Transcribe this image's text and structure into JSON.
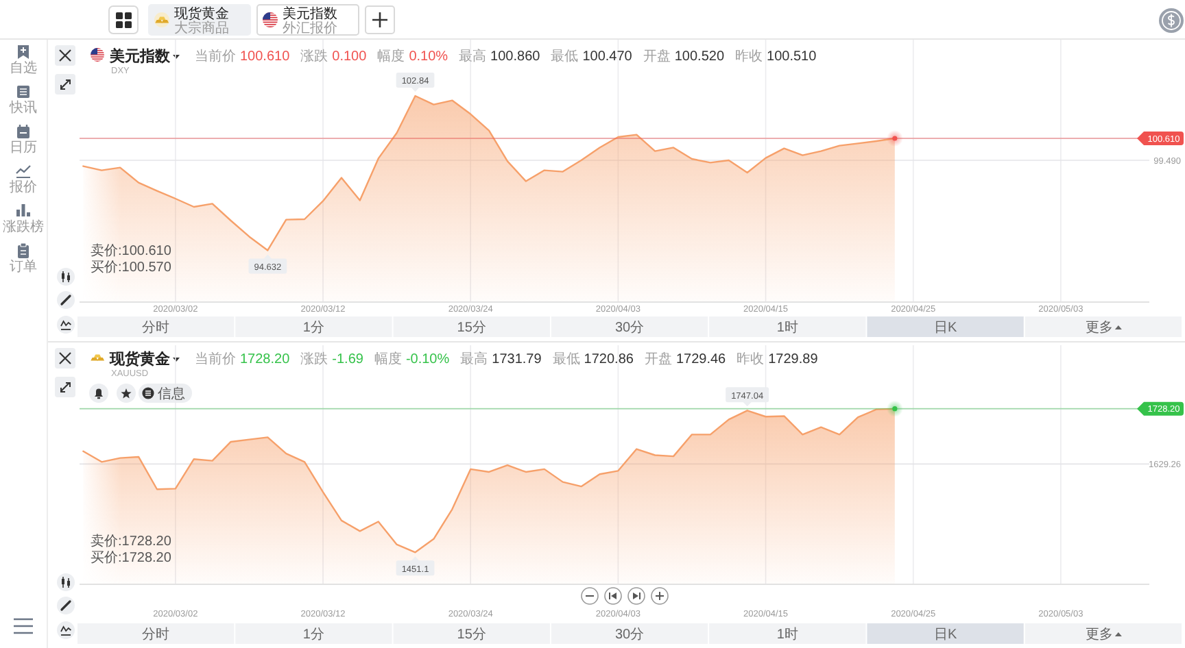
{
  "chart_data": [
    {
      "type": "other",
      "annotations": [
        "现货黄金",
        "大宗商品",
        "美元指数",
        "外汇报价",
        "自选",
        "快讯",
        "日历",
        "报价",
        "涨跌榜",
        "订单"
      ]
    },
    {
      "type": "area",
      "title": "美元指数",
      "subtitle": "DXY",
      "categories": [
        null,
        null,
        null,
        null,
        null,
        "2020/03/02",
        null,
        null,
        null,
        null,
        null,
        null,
        null,
        "2020/03/12",
        null,
        null,
        null,
        null,
        null,
        null,
        null,
        "2020/03/24",
        null,
        null,
        null,
        null,
        null,
        null,
        null,
        "2020/04/03",
        null,
        null,
        null,
        null,
        null,
        null,
        null,
        "2020/04/15",
        null,
        null,
        null,
        null,
        null,
        null,
        null,
        "2020/04/25",
        null,
        null,
        null,
        null,
        null,
        null,
        null,
        "2020/05/03",
        null,
        null,
        null,
        null
      ],
      "values": [
        99.19,
        98.98,
        99.12,
        98.35,
        97.93,
        97.53,
        97.11,
        97.27,
        96.41,
        95.59,
        94.89,
        96.46,
        96.48,
        97.41,
        98.6,
        97.44,
        99.58,
        100.89,
        102.78,
        102.34,
        102.55,
        101.85,
        101.01,
        99.44,
        98.42,
        98.98,
        98.91,
        99.49,
        100.14,
        100.68,
        100.8,
        99.96,
        100.14,
        99.56,
        99.37,
        99.49,
        98.86,
        99.61,
        100.1,
        99.75,
        99.96,
        100.24,
        100.35,
        100.47,
        100.61,
        null,
        null,
        null,
        null,
        null,
        null,
        null,
        null,
        null,
        null,
        null,
        null,
        null
      ],
      "color": "#f6a06a",
      "ylim": [
        92.28,
        105.65
      ],
      "yticks": [
        {
          "value": 99.49,
          "label": "99.490"
        },
        {
          "value": 100.61,
          "label": "100.610"
        }
      ],
      "grid": true,
      "ref_lines": [
        {
          "axis": "y",
          "value": 100.61,
          "color": "#f0524f"
        }
      ],
      "annotations": [
        "当前价",
        "100.610",
        "涨跌",
        "0.100",
        "幅度",
        "0.10%",
        "最高",
        "100.860",
        "最低",
        "100.470",
        "开盘",
        "100.520",
        "昨收",
        "100.510",
        "卖价:100.610",
        "买价:100.570",
        "分时",
        "1分",
        "15分",
        "30分",
        "1时",
        "日K",
        "更多",
        "102.84",
        "94.632"
      ]
    },
    {
      "type": "area",
      "title": "现货黄金",
      "subtitle": "XAUUSD",
      "categories": [
        null,
        null,
        null,
        null,
        null,
        "2020/03/02",
        null,
        null,
        null,
        null,
        null,
        null,
        null,
        "2020/03/12",
        null,
        null,
        null,
        null,
        null,
        null,
        null,
        "2020/03/24",
        null,
        null,
        null,
        null,
        null,
        null,
        null,
        "2020/04/03",
        null,
        null,
        null,
        null,
        null,
        null,
        null,
        "2020/04/15",
        null,
        null,
        null,
        null,
        null,
        null,
        null,
        "2020/04/25",
        null,
        null,
        null,
        null,
        null,
        null,
        null,
        "2020/05/03",
        null,
        null,
        null,
        null
      ],
      "values": [
        1652,
        1633,
        1640,
        1642,
        1584,
        1585,
        1638,
        1635,
        1669,
        1673,
        1677,
        1648,
        1633,
        1579,
        1528,
        1509,
        1526,
        1485,
        1471,
        1495,
        1548,
        1620,
        1615,
        1627,
        1615,
        1620,
        1597,
        1589,
        1611,
        1617,
        1656,
        1645,
        1643,
        1682,
        1682,
        1709,
        1725,
        1714,
        1715,
        1682,
        1695,
        1682,
        1713,
        1727,
        1728,
        null,
        null,
        null,
        null,
        null,
        null,
        null,
        null,
        null,
        null,
        null,
        null,
        null
      ],
      "color": "#f6a06a",
      "ylim": [
        1415,
        1841.9
      ],
      "yticks": [
        {
          "value": 1629.26,
          "label": "1629.26"
        },
        {
          "value": 1728.2,
          "label": "1728.20"
        }
      ],
      "grid": true,
      "ref_lines": [
        {
          "axis": "y",
          "value": 1728.2,
          "color": "#35c24a"
        }
      ],
      "annotations": [
        "当前价",
        "1728.20",
        "涨跌",
        "-1.69",
        "幅度",
        "-0.10%",
        "最高",
        "1731.79",
        "最低",
        "1720.86",
        "开盘",
        "1729.46",
        "昨收",
        "1729.89",
        "卖价:1728.20",
        "买价:1728.20",
        "分时",
        "1分",
        "15分",
        "30分",
        "1时",
        "日K",
        "更多",
        "信息",
        "1747.04",
        "1451.1"
      ]
    }
  ]
}
